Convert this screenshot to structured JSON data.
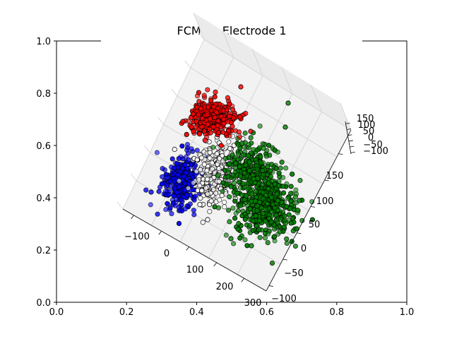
{
  "chart_data": {
    "type": "scatter",
    "projection": "3d",
    "title": "FCM on Electrode 1",
    "outer_axes": {
      "xlim": [
        0.0,
        1.0
      ],
      "ylim": [
        0.0,
        1.0
      ],
      "xticks": [
        "0.0",
        "0.2",
        "0.4",
        "0.6",
        "0.8",
        "1.0"
      ],
      "yticks": [
        "0.0",
        "0.2",
        "0.4",
        "0.6",
        "0.8",
        "1.0"
      ]
    },
    "axis3d_x": {
      "ticks": [
        "−100",
        "0",
        "100",
        "200",
        "300"
      ]
    },
    "axis3d_y": {
      "ticks": [
        "−100",
        "−50",
        "0",
        "50",
        "100",
        "150"
      ]
    },
    "axis3d_z": {
      "ticks": [
        "−100",
        "−50",
        "0",
        "50",
        "100",
        "150"
      ]
    },
    "grid": true,
    "legend": "none",
    "series": [
      {
        "color": "#ff0000",
        "edgecolor": "#000000",
        "points": 320
      },
      {
        "color": "#0000ff",
        "edgecolor": "#000000",
        "points": 300
      },
      {
        "color": "#ffffff",
        "edgecolor": "#000000",
        "points": 300
      },
      {
        "color": "#008000",
        "edgecolor": "#000000",
        "points": 700
      }
    ]
  }
}
